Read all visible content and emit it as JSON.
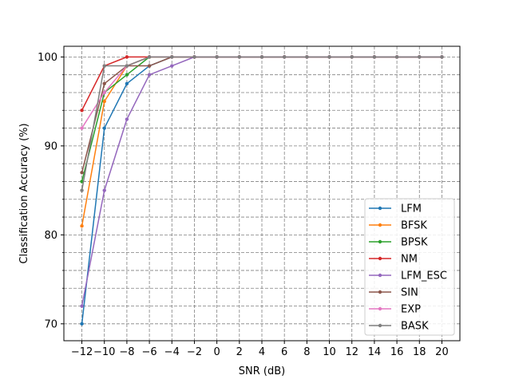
{
  "chart_data": {
    "type": "line",
    "title": "",
    "xlabel": "SNR (dB)",
    "ylabel": "Classification Accuracy (%)",
    "x": [
      -12,
      -10,
      -8,
      -6,
      -4,
      -2,
      0,
      2,
      4,
      6,
      8,
      10,
      12,
      14,
      16,
      18,
      20
    ],
    "x_tick_labels": [
      "−12",
      "−10",
      "−8",
      "−6",
      "−4",
      "−2",
      "0",
      "2",
      "4",
      "6",
      "8",
      "10",
      "12",
      "14",
      "16",
      "18",
      "20"
    ],
    "y_ticks": [
      70,
      80,
      90,
      100
    ],
    "y_minor_ticks": [
      72,
      74,
      76,
      78,
      82,
      84,
      86,
      88,
      92,
      94,
      96,
      98
    ],
    "xlim": [
      -13.6,
      21.6
    ],
    "ylim": [
      68.1,
      101.2
    ],
    "grid": true,
    "legend_position": "bottom-right",
    "series": [
      {
        "name": "LFM",
        "color": "#1f77b4",
        "values": [
          70,
          92,
          97,
          99,
          100,
          100,
          100,
          100,
          100,
          100,
          100,
          100,
          100,
          100,
          100,
          100,
          100
        ]
      },
      {
        "name": "BFSK",
        "color": "#ff7f0e",
        "values": [
          81,
          95,
          99,
          100,
          100,
          100,
          100,
          100,
          100,
          100,
          100,
          100,
          100,
          100,
          100,
          100,
          100
        ]
      },
      {
        "name": "BPSK",
        "color": "#2ca02c",
        "values": [
          86,
          96,
          98,
          100,
          100,
          100,
          100,
          100,
          100,
          100,
          100,
          100,
          100,
          100,
          100,
          100,
          100
        ]
      },
      {
        "name": "NM",
        "color": "#d62728",
        "values": [
          94,
          99,
          100,
          100,
          100,
          100,
          100,
          100,
          100,
          100,
          100,
          100,
          100,
          100,
          100,
          100,
          100
        ]
      },
      {
        "name": "LFM_ESC",
        "color": "#9467bd",
        "values": [
          72,
          85,
          93,
          98,
          99,
          100,
          100,
          100,
          100,
          100,
          100,
          100,
          100,
          100,
          100,
          100,
          100
        ]
      },
      {
        "name": "SIN",
        "color": "#8c564b",
        "values": [
          87,
          97,
          99,
          99,
          100,
          100,
          100,
          100,
          100,
          100,
          100,
          100,
          100,
          100,
          100,
          100,
          100
        ]
      },
      {
        "name": "EXP",
        "color": "#e377c2",
        "values": [
          92,
          96,
          99,
          100,
          100,
          100,
          100,
          100,
          100,
          100,
          100,
          100,
          100,
          100,
          100,
          100,
          100
        ]
      },
      {
        "name": "BASK",
        "color": "#7f7f7f",
        "values": [
          85,
          99,
          99,
          100,
          100,
          100,
          100,
          100,
          100,
          100,
          100,
          100,
          100,
          100,
          100,
          100,
          100
        ]
      }
    ]
  }
}
